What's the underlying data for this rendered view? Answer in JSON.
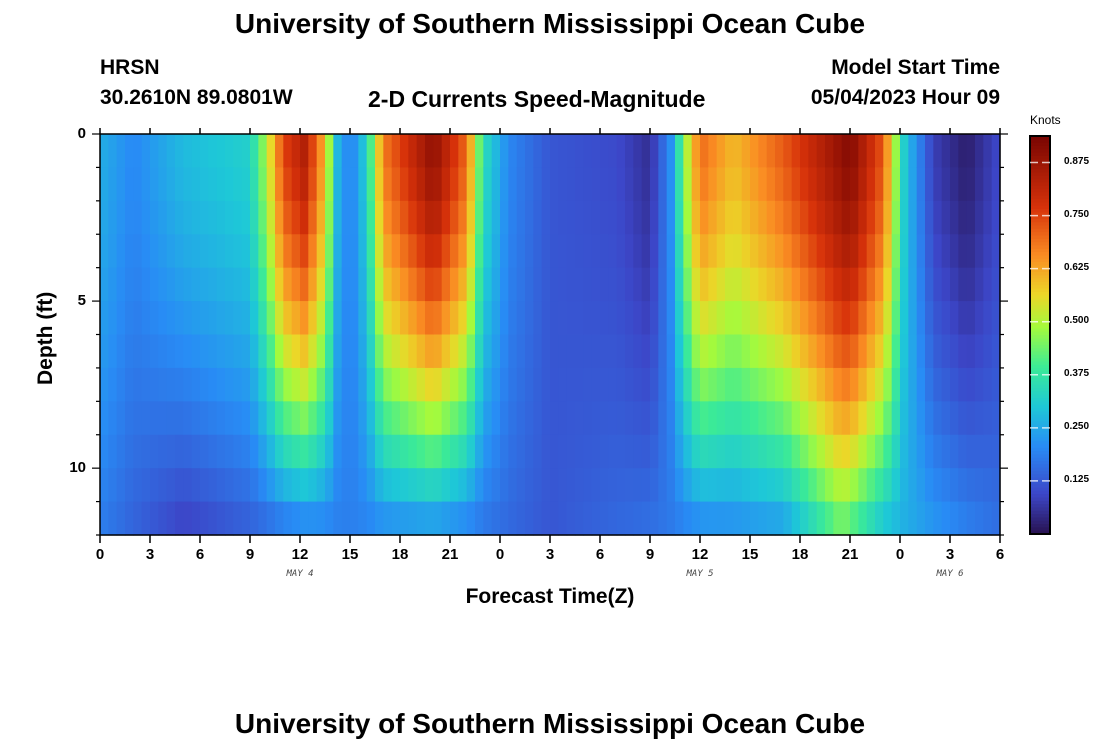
{
  "header": {
    "title": "University of Southern Mississippi Ocean Cube",
    "station": "HRSN",
    "coords": "30.2610N  89.0801W",
    "plot_title": "2-D Currents Speed-Magnitude",
    "model_start_label": "Model Start Time",
    "model_start_value": "05/04/2023 Hour 09"
  },
  "footer_title": "University of Southern Mississippi Ocean Cube",
  "chart_data": {
    "type": "heatmap",
    "title": "2-D Currents Speed-Magnitude",
    "xlabel": "Forecast Time(Z)",
    "ylabel": "Depth (ft)",
    "x_range": [
      0,
      54
    ],
    "y_range": [
      0,
      12
    ],
    "x_tick_labels": [
      "0",
      "3",
      "6",
      "9",
      "12",
      "15",
      "18",
      "21",
      "0",
      "3",
      "6",
      "9",
      "12",
      "15",
      "18",
      "21",
      "0",
      "3",
      "6"
    ],
    "y_ticks": [
      0,
      5,
      10
    ],
    "y_tick_labels": [
      "0",
      "5",
      "10"
    ],
    "date_labels": [
      {
        "label": "MAY 4",
        "x_hours": 12
      },
      {
        "label": "MAY 5",
        "x_hours": 36
      },
      {
        "label": "MAY 6",
        "x_hours": 51
      }
    ],
    "colorbar": {
      "label": "Knots",
      "min": 0,
      "max": 0.9375,
      "ticks": [
        0.125,
        0.25,
        0.375,
        0.5,
        0.625,
        0.75,
        0.875
      ],
      "tick_labels": [
        "0.125",
        "0.250",
        "0.375",
        "0.500",
        "0.625",
        "0.750",
        "0.875"
      ]
    },
    "speed_profile_surface_knots": [
      {
        "hour": 0,
        "value": 0.26
      },
      {
        "hour": 2,
        "value": 0.2
      },
      {
        "hour": 5,
        "value": 0.28
      },
      {
        "hour": 9,
        "value": 0.32
      },
      {
        "hour": 10,
        "value": 0.5
      },
      {
        "hour": 11,
        "value": 0.75
      },
      {
        "hour": 12.3,
        "value": 0.84
      },
      {
        "hour": 13.5,
        "value": 0.6
      },
      {
        "hour": 14.2,
        "value": 0.28
      },
      {
        "hour": 15,
        "value": 0.18
      },
      {
        "hour": 16,
        "value": 0.32
      },
      {
        "hour": 17,
        "value": 0.68
      },
      {
        "hour": 20,
        "value": 0.9
      },
      {
        "hour": 22,
        "value": 0.7
      },
      {
        "hour": 23,
        "value": 0.35
      },
      {
        "hour": 24.5,
        "value": 0.2
      },
      {
        "hour": 27,
        "value": 0.12
      },
      {
        "hour": 31,
        "value": 0.1
      },
      {
        "hour": 33,
        "value": 0.05
      },
      {
        "hour": 34.3,
        "value": 0.22
      },
      {
        "hour": 35,
        "value": 0.45
      },
      {
        "hour": 36,
        "value": 0.7
      },
      {
        "hour": 38,
        "value": 0.6
      },
      {
        "hour": 41,
        "value": 0.72
      },
      {
        "hour": 45,
        "value": 0.92
      },
      {
        "hour": 47,
        "value": 0.72
      },
      {
        "hour": 48.3,
        "value": 0.3
      },
      {
        "hour": 50,
        "value": 0.08
      },
      {
        "hour": 52,
        "value": 0.02
      },
      {
        "hour": 54,
        "value": 0.1
      }
    ],
    "speed_profile_bottom_knots": [
      {
        "hour": 0,
        "value": 0.18
      },
      {
        "hour": 5,
        "value": 0.08
      },
      {
        "hour": 13,
        "value": 0.18
      },
      {
        "hour": 20,
        "value": 0.2
      },
      {
        "hour": 27,
        "value": 0.12
      },
      {
        "hour": 35,
        "value": 0.18
      },
      {
        "hour": 41,
        "value": 0.22
      },
      {
        "hour": 44.5,
        "value": 0.42
      },
      {
        "hour": 47,
        "value": 0.28
      },
      {
        "hour": 54,
        "value": 0.16
      }
    ]
  }
}
